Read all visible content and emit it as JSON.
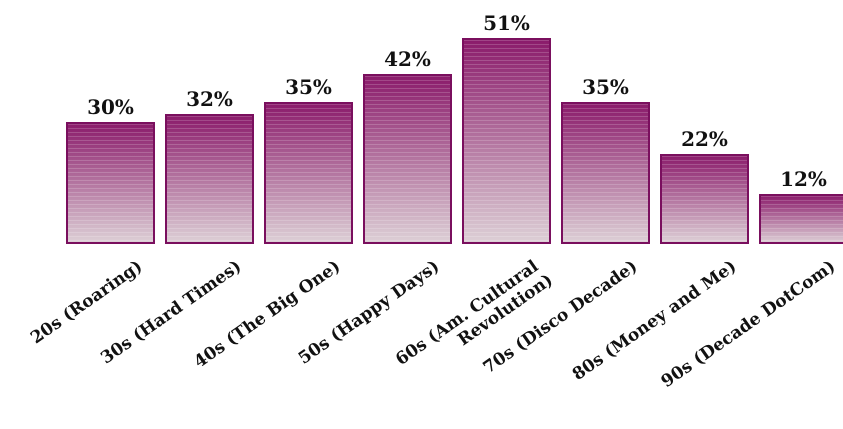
{
  "chart_data": {
    "type": "bar",
    "categories": [
      [
        "20s (Roaring)"
      ],
      [
        "30s (Hard Times)"
      ],
      [
        "40s (The Big One)"
      ],
      [
        "50s (Happy Days)"
      ],
      [
        "60s (Am. Cultural",
        "Revolution)"
      ],
      [
        "70s (Disco Decade)"
      ],
      [
        "80s (Money and Me)"
      ],
      [
        "90s (Decade DotCom)"
      ]
    ],
    "values": [
      30,
      32,
      35,
      42,
      51,
      35,
      22,
      12
    ],
    "value_labels": [
      "30%",
      "32%",
      "35%",
      "42%",
      "51%",
      "35%",
      "22%",
      "12%"
    ],
    "ylim": [
      0,
      51
    ],
    "grid": false,
    "legend": "none"
  },
  "colors": {
    "bar_top": "#8a1a6a",
    "bar_bottom": "#ddd0d6",
    "bar_border": "#7a0f5e"
  }
}
